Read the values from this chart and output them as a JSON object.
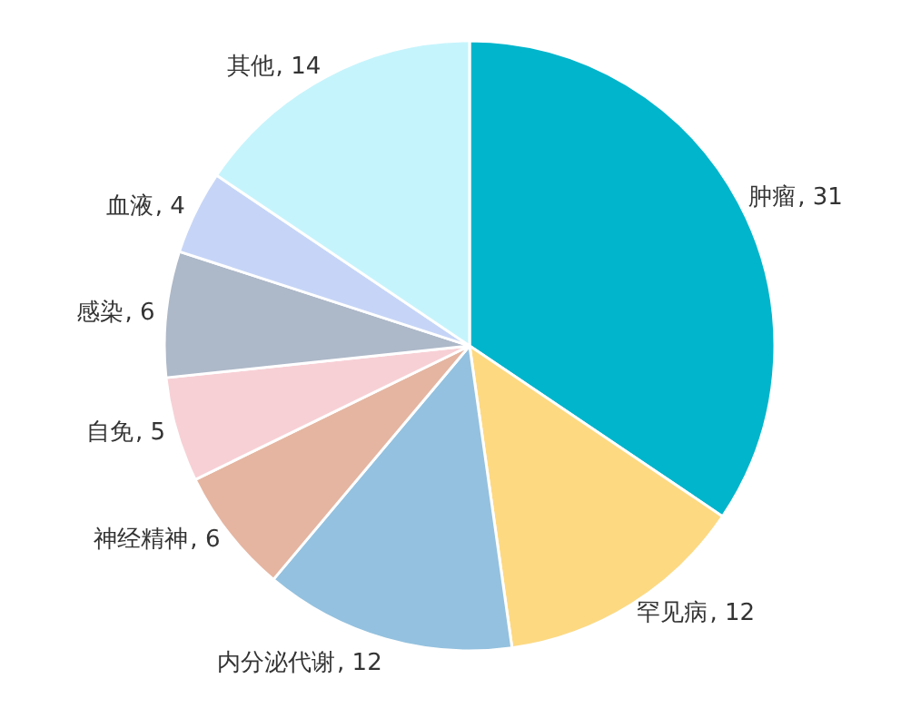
{
  "chart_data": {
    "type": "pie",
    "categories": [
      "肿瘤",
      "罕见病",
      "内分泌代谢",
      "神经精神",
      "自免",
      "感染",
      "血液",
      "其他"
    ],
    "values": [
      31,
      12,
      12,
      6,
      5,
      6,
      4,
      14
    ],
    "value_labels": [
      ", 31",
      ", 12",
      ", 12",
      ", 6",
      ", 5",
      ", 6",
      ", 4",
      ", 14"
    ],
    "colors": [
      "#00b5cc",
      "#fdd982",
      "#94c1df",
      "#e5b5a1",
      "#f7d0d5",
      "#adb8c8",
      "#c6d5f7",
      "#c6f4fc"
    ]
  }
}
